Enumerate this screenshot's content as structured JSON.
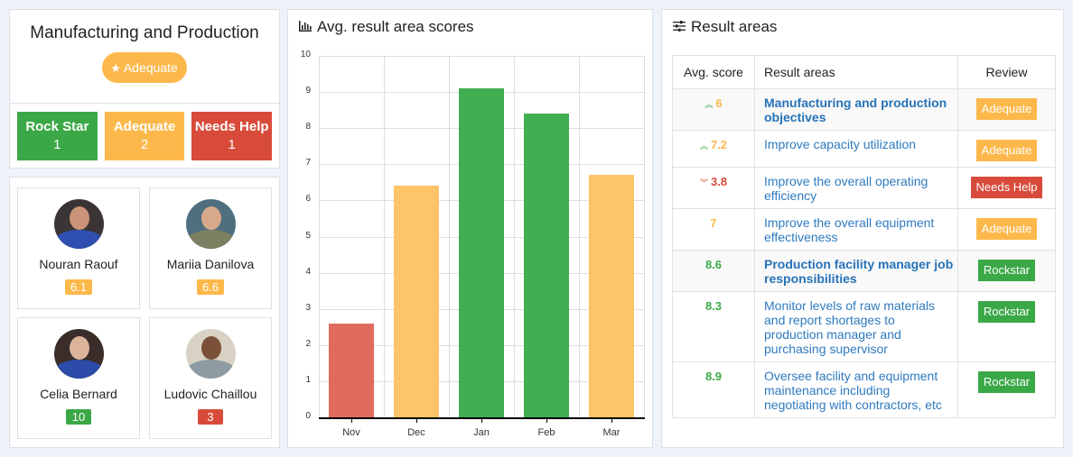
{
  "colors": {
    "green": "#3ba847",
    "orange": "#fdb84b",
    "red": "#d84b3b",
    "bar_red": "#e06b5d",
    "bar_orange": "#fec468",
    "bar_green": "#41ae52",
    "link": "#2e7abf"
  },
  "department": {
    "title": "Manufacturing and Production",
    "status_icon": "star-icon",
    "status_label": "Adequate",
    "counts": [
      {
        "label": "Rock Star",
        "value": "1",
        "color": "#3ba847"
      },
      {
        "label": "Adequate",
        "value": "2",
        "color": "#fdb84b"
      },
      {
        "label": "Needs Help",
        "value": "1",
        "color": "#d84b3b"
      }
    ]
  },
  "people": [
    {
      "name": "Nouran Raouf",
      "score": "6.1",
      "color": "#fdb84b"
    },
    {
      "name": "Mariia Danilova",
      "score": "6.6",
      "color": "#fdb84b"
    },
    {
      "name": "Celia Bernard",
      "score": "10",
      "color": "#3ba847"
    },
    {
      "name": "Ludovic Chaillou",
      "score": "3",
      "color": "#d84b3b"
    }
  ],
  "chart_panel": {
    "title": "Avg. result area scores",
    "icon": "bar-chart-icon"
  },
  "chart_data": {
    "type": "bar",
    "title": "Avg. result area scores",
    "categories": [
      "Nov",
      "Dec",
      "Jan",
      "Feb",
      "Mar"
    ],
    "values": [
      2.6,
      6.4,
      9.1,
      8.4,
      6.7
    ],
    "bar_colors": [
      "#e06b5d",
      "#fec468",
      "#41ae52",
      "#41ae52",
      "#fec468"
    ],
    "xlabel": "",
    "ylabel": "",
    "ylim": [
      0,
      10
    ],
    "yticks": [
      "0",
      "1",
      "2",
      "3",
      "4",
      "5",
      "6",
      "7",
      "8",
      "9",
      "10"
    ],
    "grid": true,
    "legend": "none"
  },
  "result_areas": {
    "title": "Result areas",
    "icon": "sliders-icon",
    "columns": [
      "Avg. score",
      "Result areas",
      "Review"
    ],
    "rows": [
      {
        "trend": "up",
        "score": "6",
        "score_color": "#fdb84b",
        "area": "Manufacturing and production objectives",
        "bold": true,
        "review": "Adequate",
        "review_color": "#fdb84b"
      },
      {
        "trend": "up",
        "score": "7.2",
        "score_color": "#fdb84b",
        "area": "Improve capacity utilization",
        "bold": false,
        "review": "Adequate",
        "review_color": "#fdb84b"
      },
      {
        "trend": "down",
        "score": "3.8",
        "score_color": "#d84b3b",
        "area": "Improve the overall operating efficiency",
        "bold": false,
        "review": "Needs Help",
        "review_color": "#d84b3b"
      },
      {
        "trend": "",
        "score": "7",
        "score_color": "#fdb84b",
        "area": "Improve the overall equipment effectiveness",
        "bold": false,
        "review": "Adequate",
        "review_color": "#fdb84b"
      },
      {
        "trend": "",
        "score": "8.6",
        "score_color": "#3ba847",
        "area": "Production facility manager job responsibilities",
        "bold": true,
        "review": "Rockstar",
        "review_color": "#3ba847"
      },
      {
        "trend": "",
        "score": "8.3",
        "score_color": "#3ba847",
        "area": "Monitor levels of raw materials and report shortages to production manager and purchasing supervisor",
        "bold": false,
        "review": "Rockstar",
        "review_color": "#3ba847"
      },
      {
        "trend": "",
        "score": "8.9",
        "score_color": "#3ba847",
        "area": "Oversee facility and equipment maintenance including negotiating with contractors, etc",
        "bold": false,
        "review": "Rockstar",
        "review_color": "#3ba847"
      }
    ]
  }
}
